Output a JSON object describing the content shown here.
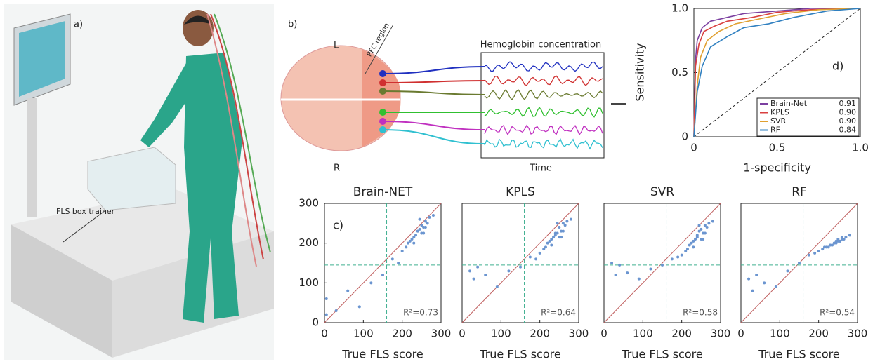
{
  "figure": {
    "panel_a": {
      "label": "a)",
      "callout": "FLS box trainer"
    },
    "panel_b": {
      "label": "b)",
      "left": "L",
      "right": "R",
      "region": "PFC region",
      "signal_title": "Hemoglobin concentration",
      "time_axis": "Time"
    }
  },
  "chart_data": [
    {
      "type": "line",
      "annotation": "d)",
      "x_label": "1-specificity",
      "y_label": "Sensitivity",
      "xlim": [
        0,
        1
      ],
      "ylim": [
        0,
        1
      ],
      "xticks": [
        0,
        0.5,
        {
          "value": 1,
          "label": "1.0"
        }
      ],
      "yticks": [
        0,
        0.5,
        {
          "value": 1,
          "label": "1.0"
        }
      ],
      "legend": "lower right",
      "series": [
        {
          "name": "Brain-Net",
          "color": "#7b3fa0",
          "auc": {
            "value": 0.91,
            "label": "0.91"
          },
          "x": [
            0,
            0.01,
            0.02,
            0.05,
            0.1,
            0.2,
            0.3,
            0.5,
            0.7,
            1
          ],
          "values": [
            0,
            0.6,
            0.75,
            0.85,
            0.9,
            0.93,
            0.96,
            0.98,
            1,
            1
          ]
        },
        {
          "name": "KPLS",
          "color": "#d94040",
          "auc": {
            "value": 0.9,
            "label": "0.90"
          },
          "x": [
            0,
            0.01,
            0.03,
            0.06,
            0.12,
            0.2,
            0.35,
            0.5,
            0.7,
            1
          ],
          "values": [
            0,
            0.55,
            0.72,
            0.82,
            0.86,
            0.9,
            0.93,
            0.97,
            0.99,
            1
          ]
        },
        {
          "name": "SVR",
          "color": "#e0a030",
          "auc": {
            "value": 0.9,
            "label": "0.90"
          },
          "x": [
            0,
            0.02,
            0.04,
            0.08,
            0.15,
            0.25,
            0.4,
            0.55,
            0.75,
            1
          ],
          "values": [
            0,
            0.4,
            0.62,
            0.75,
            0.82,
            0.88,
            0.92,
            0.96,
            0.99,
            1
          ]
        },
        {
          "name": "RF",
          "color": "#3080c0",
          "auc": {
            "value": 0.84,
            "label": "0.84"
          },
          "x": [
            0,
            0.02,
            0.05,
            0.1,
            0.2,
            0.3,
            0.45,
            0.6,
            0.8,
            1
          ],
          "values": [
            0,
            0.35,
            0.55,
            0.7,
            0.78,
            0.85,
            0.88,
            0.93,
            0.98,
            1
          ]
        }
      ]
    },
    {
      "type": "scatter",
      "title": "Brain-NET",
      "annotation": "c)",
      "r2_label": "R²=0.73",
      "x_label": "True FLS score",
      "xlim": [
        0,
        300
      ],
      "ylim": [
        0,
        300
      ],
      "xticks": [
        0,
        100,
        200,
        300
      ],
      "yticks": [
        0,
        100,
        200,
        300
      ],
      "threshold_x": 160,
      "threshold_y": 145,
      "color": "#6b95d0",
      "x": [
        240,
        250,
        230,
        260,
        220,
        255,
        245,
        235,
        270,
        210,
        265,
        225,
        250,
        240,
        280,
        200,
        190,
        260,
        245,
        230,
        175,
        150,
        120,
        60,
        90,
        30,
        5,
        5,
        215,
        255
      ],
      "values": [
        230,
        245,
        215,
        255,
        205,
        240,
        235,
        220,
        265,
        190,
        250,
        210,
        225,
        230,
        270,
        180,
        150,
        240,
        260,
        200,
        160,
        120,
        100,
        80,
        40,
        30,
        60,
        20,
        200,
        225
      ]
    },
    {
      "type": "scatter",
      "title": "KPLS",
      "r2_label": "R²=0.64",
      "x_label": "True FLS score",
      "xlim": [
        0,
        300
      ],
      "ylim": [
        0,
        300
      ],
      "xticks": [
        0,
        100,
        200,
        300
      ],
      "threshold_x": 160,
      "threshold_y": 145,
      "color": "#6b95d0",
      "x": [
        240,
        250,
        230,
        260,
        220,
        255,
        245,
        235,
        270,
        210,
        265,
        225,
        250,
        240,
        280,
        200,
        190,
        260,
        245,
        230,
        175,
        150,
        120,
        60,
        90,
        30,
        40,
        20,
        215,
        255
      ],
      "values": [
        220,
        240,
        210,
        250,
        200,
        230,
        225,
        215,
        255,
        185,
        245,
        205,
        215,
        225,
        260,
        175,
        160,
        230,
        250,
        195,
        165,
        140,
        130,
        120,
        90,
        110,
        140,
        130,
        190,
        215
      ]
    },
    {
      "type": "scatter",
      "title": "SVR",
      "r2_label": "R²=0.58",
      "x_label": "True FLS score",
      "xlim": [
        0,
        300
      ],
      "ylim": [
        0,
        300
      ],
      "xticks": [
        0,
        100,
        200,
        300
      ],
      "threshold_x": 160,
      "threshold_y": 145,
      "color": "#6b95d0",
      "x": [
        240,
        250,
        230,
        260,
        220,
        255,
        245,
        235,
        270,
        210,
        265,
        225,
        250,
        240,
        280,
        200,
        190,
        260,
        245,
        230,
        175,
        150,
        120,
        60,
        90,
        30,
        40,
        20,
        215,
        255
      ],
      "values": [
        215,
        235,
        205,
        245,
        195,
        225,
        230,
        210,
        250,
        180,
        240,
        200,
        210,
        220,
        255,
        170,
        165,
        225,
        245,
        190,
        160,
        145,
        135,
        125,
        110,
        120,
        145,
        150,
        185,
        210
      ]
    },
    {
      "type": "scatter",
      "title": "RF",
      "r2_label": "R²=0.54",
      "x_label": "True FLS score",
      "xlim": [
        0,
        300
      ],
      "ylim": [
        0,
        300
      ],
      "xticks": [
        0,
        100,
        200,
        300
      ],
      "threshold_x": 160,
      "threshold_y": 145,
      "color": "#6b95d0",
      "x": [
        240,
        250,
        230,
        260,
        220,
        255,
        245,
        235,
        270,
        210,
        265,
        225,
        250,
        240,
        280,
        200,
        190,
        260,
        245,
        230,
        175,
        150,
        120,
        60,
        90,
        30,
        40,
        20,
        215,
        255
      ],
      "values": [
        200,
        210,
        195,
        215,
        190,
        205,
        200,
        195,
        215,
        185,
        210,
        190,
        205,
        200,
        220,
        180,
        175,
        210,
        205,
        195,
        170,
        150,
        130,
        100,
        90,
        80,
        120,
        110,
        190,
        205
      ]
    }
  ]
}
